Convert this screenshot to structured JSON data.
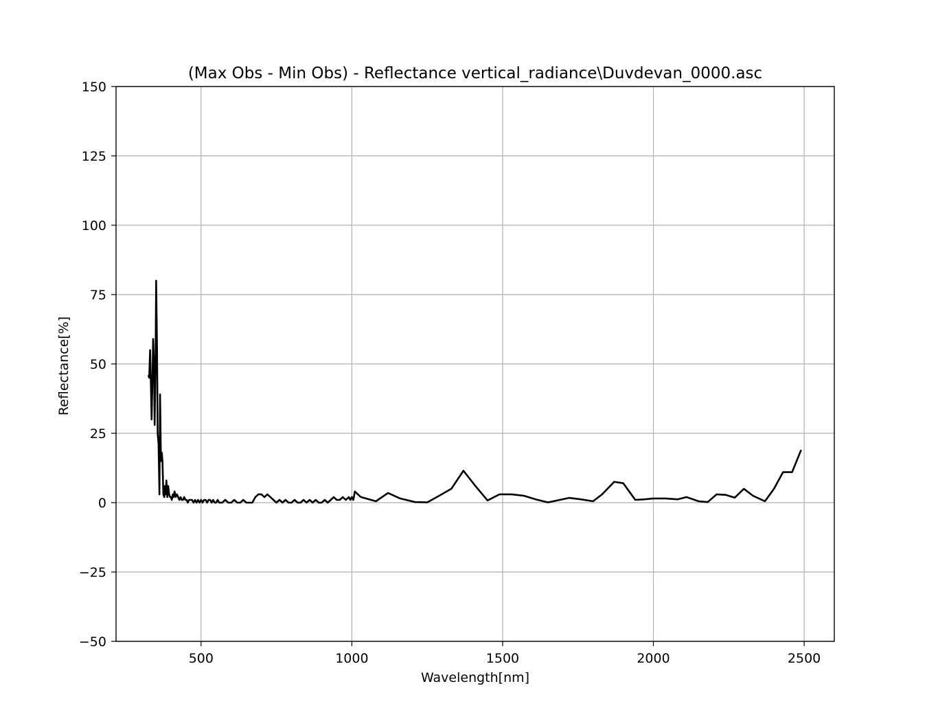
{
  "chart_data": {
    "type": "line",
    "title": "(Max Obs - Min Obs) - Reflectance vertical_radiance\\Duvdevan_0000.asc",
    "xlabel": "Wavelength[nm]",
    "ylabel": "Reflectance[%]",
    "xlim": [
      218,
      2600
    ],
    "ylim": [
      -50,
      150
    ],
    "xticks": [
      500,
      1000,
      1500,
      2000,
      2500
    ],
    "xtick_labels": [
      "500",
      "1000",
      "1500",
      "2000",
      "2500"
    ],
    "yticks": [
      -50,
      -25,
      0,
      25,
      50,
      75,
      100,
      125,
      150
    ],
    "ytick_labels": [
      "−50",
      "−25",
      "0",
      "25",
      "50",
      "75",
      "100",
      "125",
      "150"
    ],
    "grid": true,
    "line_color": "#000000",
    "series": [
      {
        "x": [
          325,
          328,
          331,
          334,
          336,
          339,
          341,
          344,
          346,
          349,
          351,
          354,
          356,
          359,
          362,
          364,
          367,
          370,
          372,
          375,
          378,
          380,
          383,
          385,
          388,
          391,
          394,
          397,
          400,
          403,
          406,
          409,
          412,
          416,
          420,
          424,
          428,
          432,
          436,
          440,
          444,
          448,
          452,
          456,
          460,
          465,
          470,
          475,
          480,
          485,
          490,
          495,
          500,
          505,
          510,
          515,
          520,
          525,
          530,
          535,
          540,
          545,
          550,
          555,
          560,
          570,
          580,
          590,
          600,
          610,
          620,
          630,
          640,
          650,
          660,
          670,
          680,
          690,
          700,
          710,
          720,
          730,
          740,
          750,
          760,
          770,
          780,
          790,
          800,
          810,
          820,
          830,
          840,
          850,
          860,
          870,
          880,
          890,
          900,
          910,
          920,
          930,
          940,
          950,
          960,
          970,
          980,
          990,
          995,
          1000,
          1005,
          1010,
          1020,
          1030,
          1080,
          1120,
          1160,
          1210,
          1250,
          1290,
          1330,
          1370,
          1410,
          1450,
          1490,
          1530,
          1570,
          1610,
          1650,
          1690,
          1720,
          1760,
          1800,
          1830,
          1870,
          1900,
          1940,
          1970,
          2000,
          2040,
          2080,
          2110,
          2150,
          2180,
          2210,
          2240,
          2270,
          2300,
          2330,
          2370,
          2400,
          2430,
          2460,
          2490
        ],
        "y": [
          46,
          45,
          55,
          41,
          30,
          45,
          59,
          50,
          28,
          50,
          80,
          55,
          25,
          21,
          3,
          39,
          15,
          18,
          15,
          3,
          2,
          6,
          3,
          8,
          2,
          6,
          3,
          2,
          2,
          1,
          3,
          2,
          4,
          2,
          3,
          2,
          1,
          2,
          1,
          1,
          2,
          1,
          1,
          0,
          1,
          1,
          1,
          0,
          1,
          0,
          1,
          0,
          1,
          0,
          1,
          1,
          0,
          1,
          1,
          0,
          1,
          0,
          0,
          1,
          0,
          0,
          1,
          0,
          0,
          1,
          0,
          0,
          1,
          0,
          0,
          0,
          2,
          3,
          3,
          2,
          3,
          2,
          1,
          0,
          1,
          0,
          1,
          0,
          0,
          1,
          0,
          0,
          1,
          0,
          1,
          0,
          1,
          0,
          0,
          1,
          0,
          1,
          2,
          1,
          1,
          2,
          1,
          2,
          1,
          2,
          1,
          4,
          3,
          2,
          0.5,
          3.5,
          1.5,
          0.2,
          0.1,
          2.5,
          5,
          11.5,
          6,
          0.8,
          3,
          3,
          2.5,
          1.2,
          0.1,
          1,
          1.7,
          1.2,
          0.5,
          3,
          7.5,
          7,
          1,
          1.2,
          1.5,
          1.5,
          1.2,
          2,
          0.5,
          0.2,
          3,
          2.8,
          1.8,
          5,
          2.5,
          0.5,
          5,
          11,
          11,
          19
        ]
      }
    ]
  }
}
